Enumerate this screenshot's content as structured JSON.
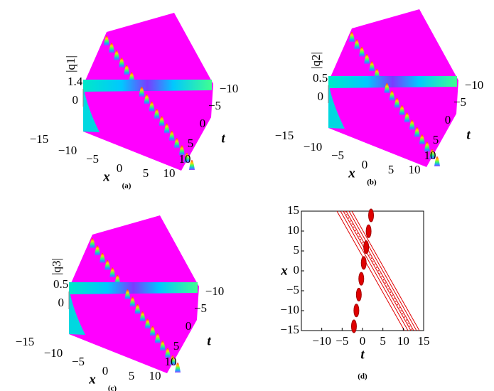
{
  "panels": [
    {
      "label": "(a)",
      "zlabel": "|q1|",
      "zticks": [
        "0",
        "1.4"
      ],
      "xlabel": "x",
      "xticks": [
        "−15",
        "−10",
        "−5",
        "0",
        "5",
        "10"
      ],
      "tlabel": "t",
      "tticks": [
        "−10",
        "−5",
        "0",
        "5",
        "10"
      ]
    },
    {
      "label": "(b)",
      "zlabel": "|q2|",
      "zticks": [
        "0",
        "0.5"
      ],
      "xlabel": "x",
      "xticks": [
        "−15",
        "−10",
        "−5",
        "0",
        "5",
        "10"
      ],
      "tlabel": "t",
      "tticks": [
        "−10",
        "−5",
        "0",
        "5",
        "10"
      ]
    },
    {
      "label": "(c)",
      "zlabel": "|q3|",
      "zticks": [
        "0",
        "0.5"
      ],
      "xlabel": "x",
      "xticks": [
        "−15",
        "−10",
        "−5",
        "0",
        "5",
        "10"
      ],
      "tlabel": "t",
      "tticks": [
        "−10",
        "−5",
        "0",
        "5",
        "10"
      ]
    }
  ],
  "contour": {
    "label": "(d)",
    "xlabel": "t",
    "ylabel": "x",
    "xlim": [
      -15,
      15
    ],
    "ylim": [
      -15,
      15
    ],
    "xticks": [
      {
        "value": -10,
        "label": "−10"
      },
      {
        "value": -5,
        "label": "−5"
      },
      0,
      5,
      10,
      15
    ],
    "yticks": [
      15,
      10,
      5,
      0,
      {
        "value": -5,
        "label": "−5"
      },
      {
        "value": -10,
        "label": "−10"
      },
      {
        "value": -15,
        "label": "−15"
      }
    ]
  }
}
